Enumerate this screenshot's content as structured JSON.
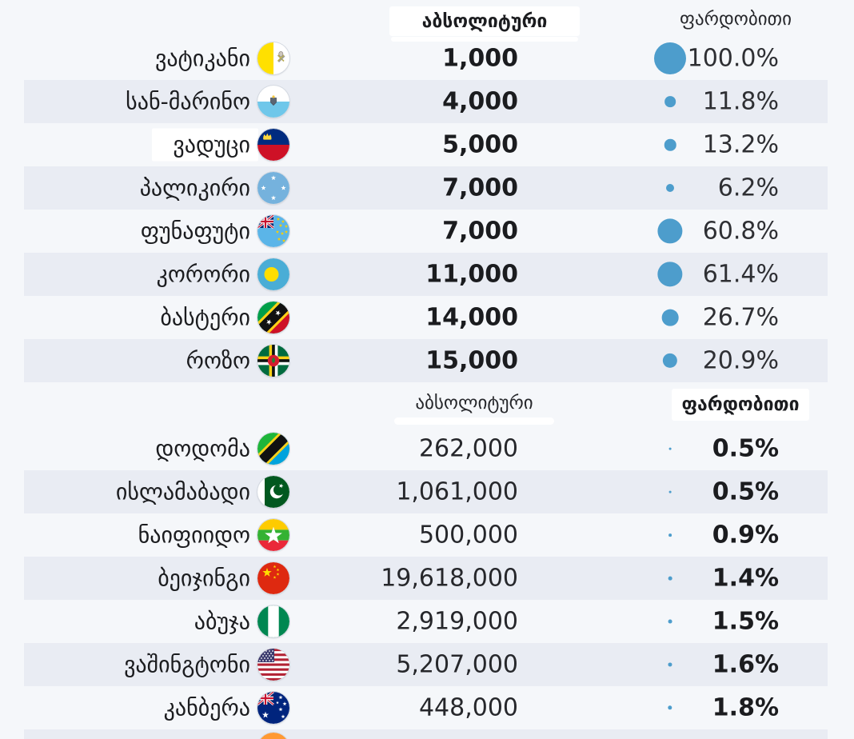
{
  "page": {
    "background": "#f5f7fa",
    "stripe_color": "#e9ecf3",
    "bubble_color": "#4d9dcc",
    "bubble_scale": "diameter_px = 4 * sqrt(percent)"
  },
  "tables": [
    {
      "id": "small-capitals",
      "headers": {
        "absolute": "აბსოლიტური",
        "relative": "ფარდობითი"
      },
      "rows": [
        {
          "name": "ვატიკანი",
          "flag": "vatican",
          "absolute": "1,000",
          "percent": "100.0%",
          "percent_value": 100.0
        },
        {
          "name": "სან-მარინო",
          "flag": "san-marino",
          "absolute": "4,000",
          "percent": "11.8%",
          "percent_value": 11.8
        },
        {
          "name": "ვადუცი",
          "flag": "liechtenstein",
          "absolute": "5,000",
          "percent": "13.2%",
          "percent_value": 13.2,
          "name_highlight": true
        },
        {
          "name": "პალიკირი",
          "flag": "micronesia",
          "absolute": "7,000",
          "percent": "6.2%",
          "percent_value": 6.2
        },
        {
          "name": "ფუნაფუტი",
          "flag": "tuvalu",
          "absolute": "7,000",
          "percent": "60.8%",
          "percent_value": 60.8
        },
        {
          "name": "კორორი",
          "flag": "palau",
          "absolute": "11,000",
          "percent": "61.4%",
          "percent_value": 61.4
        },
        {
          "name": "ბასტერი",
          "flag": "saint-kitts",
          "absolute": "14,000",
          "percent": "26.7%",
          "percent_value": 26.7
        },
        {
          "name": "როზო",
          "flag": "dominica",
          "absolute": "15,000",
          "percent": "20.9%",
          "percent_value": 20.9
        }
      ]
    },
    {
      "id": "large-capitals",
      "headers": {
        "absolute": "აბსოლიტური",
        "relative": "ფარდობითი"
      },
      "rows": [
        {
          "name": "დოდომა",
          "flag": "tanzania",
          "absolute": "262,000",
          "percent": "0.5%",
          "percent_value": 0.5
        },
        {
          "name": "ისლამაბადი",
          "flag": "pakistan",
          "absolute": "1,061,000",
          "percent": "0.5%",
          "percent_value": 0.5
        },
        {
          "name": "ნაიფიიდო",
          "flag": "myanmar",
          "absolute": "500,000",
          "percent": "0.9%",
          "percent_value": 0.9
        },
        {
          "name": "ბეიჯინგი",
          "flag": "china",
          "absolute": "19,618,000",
          "percent": "1.4%",
          "percent_value": 1.4
        },
        {
          "name": "აბუჯა",
          "flag": "nigeria",
          "absolute": "2,919,000",
          "percent": "1.5%",
          "percent_value": 1.5
        },
        {
          "name": "ვაშინგტონი",
          "flag": "usa",
          "absolute": "5,207,000",
          "percent": "1.6%",
          "percent_value": 1.6
        },
        {
          "name": "კანბერა",
          "flag": "australia",
          "absolute": "448,000",
          "percent": "1.8%",
          "percent_value": 1.8
        }
      ],
      "partial_row": {
        "flag": "india"
      }
    }
  ],
  "chart_data": {
    "type": "table",
    "title": "",
    "legend_position": "none",
    "bubble_encoding": "relative percent, area-scaled blue dot, 100% = 40px diameter",
    "sections": [
      {
        "name": "smallest-capitals",
        "columns": [
          "capital",
          "absolute_population",
          "relative_percent"
        ],
        "rows": [
          [
            "ვატიკანი",
            1000,
            100.0
          ],
          [
            "სან-მარინო",
            4000,
            11.8
          ],
          [
            "ვადუცი",
            5000,
            13.2
          ],
          [
            "პალიკირი",
            7000,
            6.2
          ],
          [
            "ფუნაფუტი",
            7000,
            60.8
          ],
          [
            "კორორი",
            11000,
            61.4
          ],
          [
            "ბასტერი",
            14000,
            26.7
          ],
          [
            "როზო",
            15000,
            20.9
          ]
        ]
      },
      {
        "name": "largest-capitals",
        "columns": [
          "capital",
          "absolute_population",
          "relative_percent"
        ],
        "rows": [
          [
            "დოდომა",
            262000,
            0.5
          ],
          [
            "ისლამაბადი",
            1061000,
            0.5
          ],
          [
            "ნაიფიიდო",
            500000,
            0.9
          ],
          [
            "ბეიჯინგი",
            19618000,
            1.4
          ],
          [
            "აბუჯა",
            2919000,
            1.5
          ],
          [
            "ვაშინგტონი",
            5207000,
            1.6
          ],
          [
            "კანბერა",
            448000,
            1.8
          ]
        ]
      }
    ]
  }
}
